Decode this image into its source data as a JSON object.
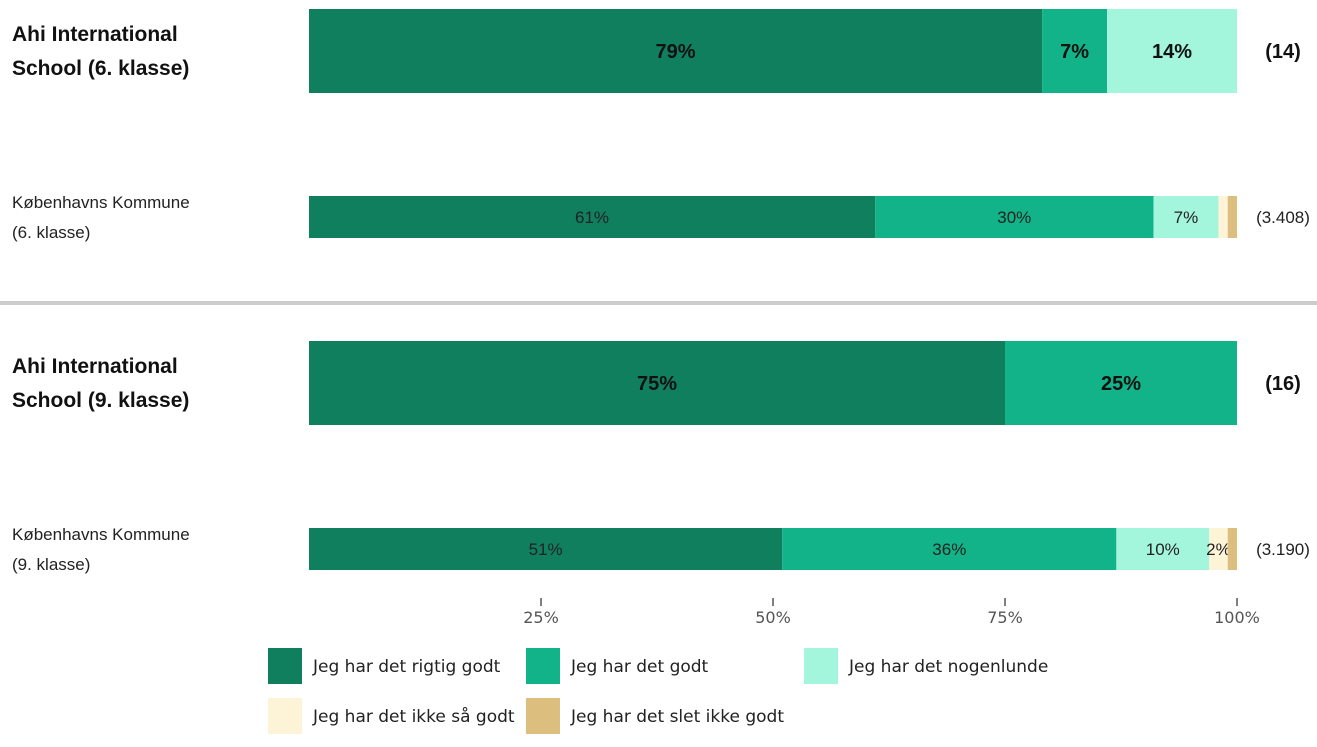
{
  "chart_data": {
    "type": "bar",
    "orientation": "horizontal",
    "stacked": true,
    "xlim": [
      0,
      100
    ],
    "x_ticks": [
      "25%",
      "50%",
      "75%",
      "100%"
    ],
    "x_tick_values": [
      25,
      50,
      75,
      100
    ],
    "grid": false,
    "legend_position": "bottom",
    "series": [
      {
        "name": "Jeg har det rigtig godt",
        "color": "#0f7f5e"
      },
      {
        "name": "Jeg har det godt",
        "color": "#12b388"
      },
      {
        "name": "Jeg har det nogenlunde",
        "color": "#a3f5dc"
      },
      {
        "name": "Jeg har det ikke så godt",
        "color": "#fdf3d7"
      },
      {
        "name": "Jeg har det slet ikke godt",
        "color": "#dcbf7e"
      }
    ],
    "rows": [
      {
        "label": [
          "Ahi International",
          "School (6. klasse)"
        ],
        "bold": true,
        "count": "(14)",
        "values": [
          79,
          7,
          14,
          0,
          0
        ],
        "value_labels": [
          "79%",
          "7%",
          "14%",
          "",
          ""
        ]
      },
      {
        "label": [
          "Københavns Kommune",
          "(6. klasse)"
        ],
        "bold": false,
        "count": "(3.408)",
        "values": [
          61,
          30,
          7,
          1,
          1
        ],
        "value_labels": [
          "61%",
          "30%",
          "7%",
          "",
          ""
        ]
      },
      {
        "label": [
          "Ahi International",
          "School (9. klasse)"
        ],
        "bold": true,
        "count": "(16)",
        "values": [
          75,
          25,
          0,
          0,
          0
        ],
        "value_labels": [
          "75%",
          "25%",
          "",
          "",
          ""
        ]
      },
      {
        "label": [
          "Københavns Kommune",
          "(9. klasse)"
        ],
        "bold": false,
        "count": "(3.190)",
        "values": [
          51,
          36,
          10,
          2,
          1
        ],
        "value_labels": [
          "51%",
          "36%",
          "10%",
          "2%",
          ""
        ]
      }
    ]
  }
}
